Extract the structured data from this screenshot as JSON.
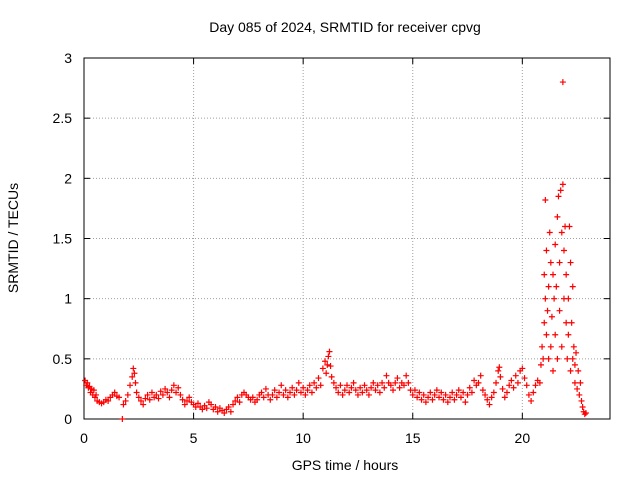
{
  "chart_data": {
    "type": "scatter",
    "title": "Day 085 of 2024, SRMTID for receiver cpvg",
    "xlabel": "GPS time / hours",
    "ylabel": "SRMTID / TECUs",
    "xlim": [
      0,
      24
    ],
    "ylim": [
      0,
      3
    ],
    "x_ticks": [
      0,
      5,
      10,
      15,
      20
    ],
    "y_ticks": [
      0,
      0.5,
      1,
      1.5,
      2,
      2.5,
      3
    ],
    "x_tick_labels": [
      "0",
      "5",
      "10",
      "15",
      "20"
    ],
    "y_tick_labels": [
      "0",
      "0.5",
      "1",
      "1.5",
      "2",
      "2.5",
      "3"
    ],
    "grid": true,
    "marker": "+",
    "series": [
      {
        "name": "SRMTID",
        "color": "#ff0000",
        "points": [
          [
            0.05,
            0.32
          ],
          [
            0.1,
            0.28
          ],
          [
            0.15,
            0.3
          ],
          [
            0.2,
            0.26
          ],
          [
            0.25,
            0.27
          ],
          [
            0.3,
            0.22
          ],
          [
            0.35,
            0.25
          ],
          [
            0.4,
            0.2
          ],
          [
            0.45,
            0.24
          ],
          [
            0.5,
            0.18
          ],
          [
            0.55,
            0.2
          ],
          [
            0.6,
            0.15
          ],
          [
            0.7,
            0.14
          ],
          [
            0.8,
            0.13
          ],
          [
            0.9,
            0.14
          ],
          [
            1.0,
            0.16
          ],
          [
            1.1,
            0.15
          ],
          [
            1.2,
            0.18
          ],
          [
            1.3,
            0.2
          ],
          [
            1.4,
            0.22
          ],
          [
            1.5,
            0.19
          ],
          [
            1.6,
            0.18
          ],
          [
            1.75,
            0.0
          ],
          [
            1.8,
            0.12
          ],
          [
            1.9,
            0.15
          ],
          [
            2.0,
            0.2
          ],
          [
            2.1,
            0.28
          ],
          [
            2.2,
            0.35
          ],
          [
            2.25,
            0.42
          ],
          [
            2.3,
            0.38
          ],
          [
            2.35,
            0.3
          ],
          [
            2.4,
            0.22
          ],
          [
            2.5,
            0.18
          ],
          [
            2.6,
            0.15
          ],
          [
            2.7,
            0.12
          ],
          [
            2.8,
            0.17
          ],
          [
            2.9,
            0.2
          ],
          [
            3.0,
            0.16
          ],
          [
            3.1,
            0.22
          ],
          [
            3.2,
            0.18
          ],
          [
            3.3,
            0.2
          ],
          [
            3.4,
            0.17
          ],
          [
            3.5,
            0.23
          ],
          [
            3.6,
            0.2
          ],
          [
            3.7,
            0.25
          ],
          [
            3.8,
            0.22
          ],
          [
            3.9,
            0.18
          ],
          [
            4.0,
            0.24
          ],
          [
            4.1,
            0.28
          ],
          [
            4.2,
            0.22
          ],
          [
            4.3,
            0.26
          ],
          [
            4.4,
            0.2
          ],
          [
            4.5,
            0.16
          ],
          [
            4.6,
            0.12
          ],
          [
            4.7,
            0.15
          ],
          [
            4.8,
            0.18
          ],
          [
            4.9,
            0.14
          ],
          [
            5.0,
            0.12
          ],
          [
            5.1,
            0.1
          ],
          [
            5.2,
            0.13
          ],
          [
            5.3,
            0.1
          ],
          [
            5.4,
            0.08
          ],
          [
            5.5,
            0.11
          ],
          [
            5.6,
            0.09
          ],
          [
            5.7,
            0.14
          ],
          [
            5.8,
            0.12
          ],
          [
            5.9,
            0.08
          ],
          [
            6.0,
            0.1
          ],
          [
            6.1,
            0.06
          ],
          [
            6.2,
            0.09
          ],
          [
            6.3,
            0.07
          ],
          [
            6.4,
            0.05
          ],
          [
            6.5,
            0.08
          ],
          [
            6.6,
            0.1
          ],
          [
            6.7,
            0.06
          ],
          [
            6.8,
            0.12
          ],
          [
            6.9,
            0.15
          ],
          [
            7.0,
            0.18
          ],
          [
            7.1,
            0.14
          ],
          [
            7.2,
            0.2
          ],
          [
            7.3,
            0.22
          ],
          [
            7.4,
            0.2
          ],
          [
            7.5,
            0.18
          ],
          [
            7.6,
            0.16
          ],
          [
            7.7,
            0.18
          ],
          [
            7.8,
            0.14
          ],
          [
            7.9,
            0.16
          ],
          [
            8.0,
            0.2
          ],
          [
            8.1,
            0.22
          ],
          [
            8.2,
            0.18
          ],
          [
            8.3,
            0.25
          ],
          [
            8.4,
            0.2
          ],
          [
            8.5,
            0.16
          ],
          [
            8.6,
            0.2
          ],
          [
            8.7,
            0.24
          ],
          [
            8.8,
            0.18
          ],
          [
            8.9,
            0.22
          ],
          [
            9.0,
            0.28
          ],
          [
            9.1,
            0.2
          ],
          [
            9.2,
            0.24
          ],
          [
            9.3,
            0.18
          ],
          [
            9.4,
            0.22
          ],
          [
            9.5,
            0.26
          ],
          [
            9.6,
            0.2
          ],
          [
            9.7,
            0.24
          ],
          [
            9.8,
            0.3
          ],
          [
            9.9,
            0.22
          ],
          [
            10.0,
            0.26
          ],
          [
            10.1,
            0.2
          ],
          [
            10.2,
            0.24
          ],
          [
            10.3,
            0.28
          ],
          [
            10.4,
            0.22
          ],
          [
            10.5,
            0.3
          ],
          [
            10.6,
            0.26
          ],
          [
            10.7,
            0.34
          ],
          [
            10.8,
            0.28
          ],
          [
            10.9,
            0.42
          ],
          [
            11.0,
            0.48
          ],
          [
            11.05,
            0.38
          ],
          [
            11.1,
            0.45
          ],
          [
            11.15,
            0.52
          ],
          [
            11.2,
            0.56
          ],
          [
            11.25,
            0.44
          ],
          [
            11.3,
            0.35
          ],
          [
            11.4,
            0.3
          ],
          [
            11.5,
            0.26
          ],
          [
            11.6,
            0.22
          ],
          [
            11.7,
            0.28
          ],
          [
            11.8,
            0.2
          ],
          [
            11.9,
            0.24
          ],
          [
            12.0,
            0.28
          ],
          [
            12.1,
            0.22
          ],
          [
            12.2,
            0.26
          ],
          [
            12.3,
            0.3
          ],
          [
            12.4,
            0.24
          ],
          [
            12.5,
            0.2
          ],
          [
            12.6,
            0.26
          ],
          [
            12.7,
            0.22
          ],
          [
            12.8,
            0.28
          ],
          [
            12.9,
            0.24
          ],
          [
            13.0,
            0.2
          ],
          [
            13.1,
            0.26
          ],
          [
            13.2,
            0.3
          ],
          [
            13.3,
            0.24
          ],
          [
            13.4,
            0.28
          ],
          [
            13.5,
            0.22
          ],
          [
            13.6,
            0.3
          ],
          [
            13.7,
            0.26
          ],
          [
            13.8,
            0.36
          ],
          [
            13.9,
            0.3
          ],
          [
            14.0,
            0.28
          ],
          [
            14.1,
            0.24
          ],
          [
            14.2,
            0.3
          ],
          [
            14.3,
            0.34
          ],
          [
            14.4,
            0.26
          ],
          [
            14.5,
            0.3
          ],
          [
            14.6,
            0.28
          ],
          [
            14.7,
            0.36
          ],
          [
            14.8,
            0.3
          ],
          [
            14.9,
            0.24
          ],
          [
            15.0,
            0.2
          ],
          [
            15.1,
            0.24
          ],
          [
            15.2,
            0.18
          ],
          [
            15.3,
            0.22
          ],
          [
            15.4,
            0.16
          ],
          [
            15.5,
            0.2
          ],
          [
            15.6,
            0.14
          ],
          [
            15.7,
            0.18
          ],
          [
            15.8,
            0.22
          ],
          [
            15.9,
            0.16
          ],
          [
            16.0,
            0.2
          ],
          [
            16.1,
            0.24
          ],
          [
            16.2,
            0.18
          ],
          [
            16.3,
            0.22
          ],
          [
            16.4,
            0.16
          ],
          [
            16.5,
            0.2
          ],
          [
            16.6,
            0.14
          ],
          [
            16.7,
            0.18
          ],
          [
            16.8,
            0.22
          ],
          [
            16.9,
            0.16
          ],
          [
            17.0,
            0.2
          ],
          [
            17.1,
            0.24
          ],
          [
            17.2,
            0.18
          ],
          [
            17.3,
            0.22
          ],
          [
            17.4,
            0.14
          ],
          [
            17.5,
            0.2
          ],
          [
            17.6,
            0.26
          ],
          [
            17.7,
            0.22
          ],
          [
            17.8,
            0.32
          ],
          [
            17.9,
            0.28
          ],
          [
            18.0,
            0.3
          ],
          [
            18.1,
            0.36
          ],
          [
            18.2,
            0.24
          ],
          [
            18.3,
            0.2
          ],
          [
            18.4,
            0.16
          ],
          [
            18.5,
            0.12
          ],
          [
            18.6,
            0.18
          ],
          [
            18.7,
            0.22
          ],
          [
            18.8,
            0.3
          ],
          [
            18.9,
            0.4
          ],
          [
            18.95,
            0.43
          ],
          [
            19.0,
            0.35
          ],
          [
            19.1,
            0.25
          ],
          [
            19.2,
            0.18
          ],
          [
            19.3,
            0.22
          ],
          [
            19.4,
            0.28
          ],
          [
            19.5,
            0.32
          ],
          [
            19.6,
            0.26
          ],
          [
            19.7,
            0.36
          ],
          [
            19.8,
            0.3
          ],
          [
            19.9,
            0.4
          ],
          [
            20.0,
            0.42
          ],
          [
            20.1,
            0.34
          ],
          [
            20.2,
            0.28
          ],
          [
            20.3,
            0.2
          ],
          [
            20.4,
            0.15
          ],
          [
            20.5,
            0.22
          ],
          [
            20.6,
            0.28
          ],
          [
            20.7,
            0.32
          ],
          [
            20.8,
            0.3
          ],
          [
            20.85,
            0.45
          ],
          [
            20.9,
            0.6
          ],
          [
            20.95,
            0.5
          ],
          [
            21.0,
            1.2
          ],
          [
            21.0,
            0.8
          ],
          [
            21.05,
            1.82
          ],
          [
            21.05,
            1.0
          ],
          [
            21.1,
            0.7
          ],
          [
            21.1,
            1.4
          ],
          [
            21.15,
            0.9
          ],
          [
            21.2,
            1.1
          ],
          [
            21.2,
            0.5
          ],
          [
            21.25,
            1.55
          ],
          [
            21.3,
            1.3
          ],
          [
            21.3,
            0.6
          ],
          [
            21.35,
            0.85
          ],
          [
            21.4,
            1.2
          ],
          [
            21.4,
            0.4
          ],
          [
            21.45,
            1.0
          ],
          [
            21.5,
            1.45
          ],
          [
            21.5,
            0.7
          ],
          [
            21.55,
            1.1
          ],
          [
            21.6,
            1.68
          ],
          [
            21.6,
            0.5
          ],
          [
            21.65,
            1.85
          ],
          [
            21.7,
            1.3
          ],
          [
            21.7,
            0.9
          ],
          [
            21.75,
            1.9
          ],
          [
            21.8,
            1.55
          ],
          [
            21.8,
            0.6
          ],
          [
            21.85,
            1.95
          ],
          [
            21.85,
            2.8
          ],
          [
            21.9,
            1.4
          ],
          [
            21.9,
            1.0
          ],
          [
            21.95,
            1.6
          ],
          [
            22.0,
            0.8
          ],
          [
            22.0,
            1.2
          ],
          [
            22.05,
            0.5
          ],
          [
            22.1,
            1.0
          ],
          [
            22.1,
            0.7
          ],
          [
            22.15,
            1.6
          ],
          [
            22.2,
            0.4
          ],
          [
            22.2,
            1.3
          ],
          [
            22.25,
            0.8
          ],
          [
            22.3,
            0.5
          ],
          [
            22.3,
            1.1
          ],
          [
            22.35,
            0.6
          ],
          [
            22.4,
            0.45
          ],
          [
            22.4,
            0.3
          ],
          [
            22.45,
            0.55
          ],
          [
            22.5,
            0.25
          ],
          [
            22.55,
            0.4
          ],
          [
            22.6,
            0.2
          ],
          [
            22.65,
            0.3
          ],
          [
            22.7,
            0.15
          ],
          [
            22.75,
            0.1
          ],
          [
            22.8,
            0.06
          ],
          [
            22.85,
            0.04
          ],
          [
            22.9,
            0.05
          ]
        ]
      }
    ]
  }
}
